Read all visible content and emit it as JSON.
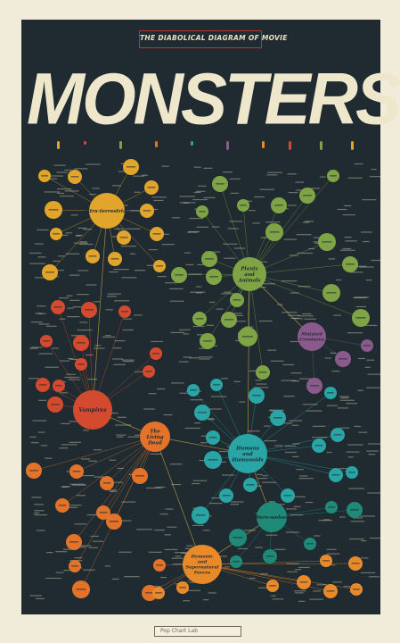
{
  "poster": {
    "banner_text": "THE DIABOLICAL DIAGRAM OF MOVIE",
    "title": "MONSTERS",
    "background": "#1f2b30",
    "paper": "#f1ecd9",
    "footer_text": "Pop Chart Lab"
  },
  "colors": {
    "extraterrestrials": "#e2a52b",
    "plants": "#7fa445",
    "mutated": "#8a5a8c",
    "vampires": "#d44a2f",
    "living_dead": "#e3732a",
    "humans": "#2aa5a5",
    "were": "#1f8a78",
    "demonic": "#e98a2a",
    "cream": "#eee7cc"
  },
  "hubs": [
    {
      "id": "et",
      "label": "Extra-terrestrials",
      "color": "extraterrestrials"
    },
    {
      "id": "pa",
      "label": "Plants and Animals",
      "color": "plants"
    },
    {
      "id": "mc",
      "label": "Mutated Creatures",
      "color": "mutated"
    },
    {
      "id": "va",
      "label": "Vampires",
      "color": "vampires"
    },
    {
      "id": "ld",
      "label": "The Living Dead",
      "color": "living_dead"
    },
    {
      "id": "hu",
      "label": "Humans and Humanoids",
      "color": "humans"
    },
    {
      "id": "we",
      "label": "Were-wolves",
      "color": "were"
    },
    {
      "id": "ds",
      "label": "Demonic and Supernatural Forces",
      "color": "demonic"
    }
  ]
}
